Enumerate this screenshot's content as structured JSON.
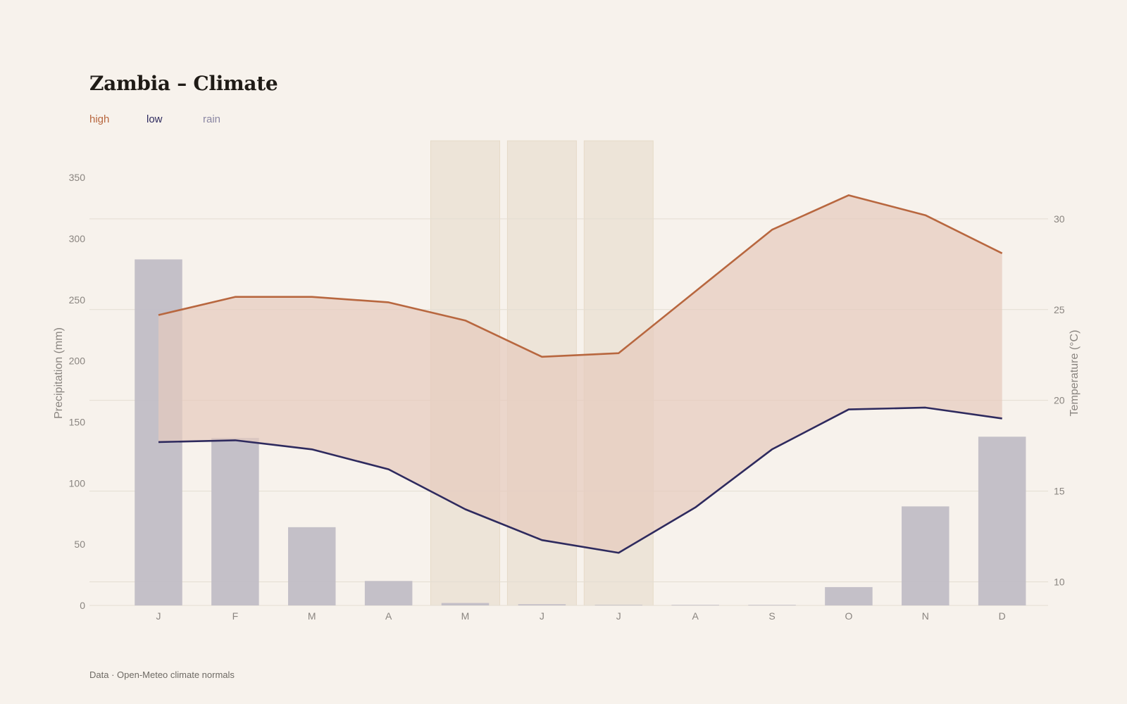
{
  "title": "Zambia – Climate",
  "legend": [
    {
      "label": "high",
      "color": "#b8673f"
    },
    {
      "label": "low",
      "color": "#2e2a5e"
    },
    {
      "label": "rain",
      "color": "#8b87a3"
    }
  ],
  "source": "Data · Open-Meteo climate normals",
  "chart_data": {
    "type": "bar+line",
    "categories": [
      "J",
      "F",
      "M",
      "A",
      "M",
      "J",
      "J",
      "A",
      "S",
      "O",
      "N",
      "D"
    ],
    "highlighted_months": [
      4,
      5,
      6
    ],
    "series": [
      {
        "name": "rain",
        "type": "bar",
        "axis": "left",
        "color": "#c1bdc6",
        "values": [
          283,
          137,
          64,
          20,
          2,
          1,
          0.5,
          0.5,
          0.5,
          15,
          81,
          138
        ]
      },
      {
        "name": "high",
        "type": "line",
        "axis": "right",
        "color": "#b8673f",
        "values": [
          24.7,
          25.7,
          25.7,
          25.4,
          24.4,
          22.4,
          22.6,
          26.0,
          29.4,
          31.3,
          30.2,
          28.1
        ]
      },
      {
        "name": "low",
        "type": "line",
        "axis": "right",
        "color": "#2e2a5e",
        "values": [
          17.7,
          17.8,
          17.3,
          16.2,
          14.0,
          12.3,
          11.6,
          14.1,
          17.3,
          19.5,
          19.6,
          19.0
        ]
      }
    ],
    "y_left": {
      "label": "Precipitation (mm)",
      "range": [
        0,
        380
      ],
      "ticks": [
        0,
        50,
        100,
        150,
        200,
        250,
        300,
        350
      ]
    },
    "y_right": {
      "label": "Temperature (°C)",
      "range": [
        8.7,
        34.3
      ],
      "ticks": [
        10,
        15,
        20,
        25,
        30
      ]
    },
    "fill_between": {
      "series": [
        "high",
        "low"
      ],
      "color": "#e6cbbd"
    }
  }
}
